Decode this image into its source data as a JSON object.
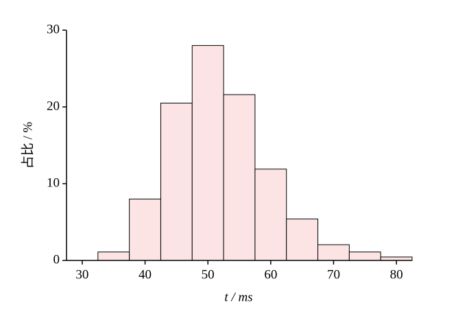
{
  "chart_data": {
    "type": "histogram",
    "xlabel": "t / ms",
    "ylabel": "占比 / %",
    "bins": [
      32.5,
      37.5,
      42.5,
      47.5,
      52.5,
      57.5,
      62.5,
      67.5,
      72.5,
      77.5,
      82.5
    ],
    "values": [
      1.1,
      8.0,
      20.5,
      28.0,
      21.6,
      11.9,
      5.4,
      2.05,
      1.1,
      0.45
    ],
    "color": "#fce4e4",
    "xlim": [
      27.5,
      82.5
    ],
    "xticks": [
      30,
      40,
      50,
      60,
      70,
      80
    ],
    "ylim": [
      0,
      30
    ],
    "yticks": [
      0,
      10,
      20,
      30
    ]
  }
}
